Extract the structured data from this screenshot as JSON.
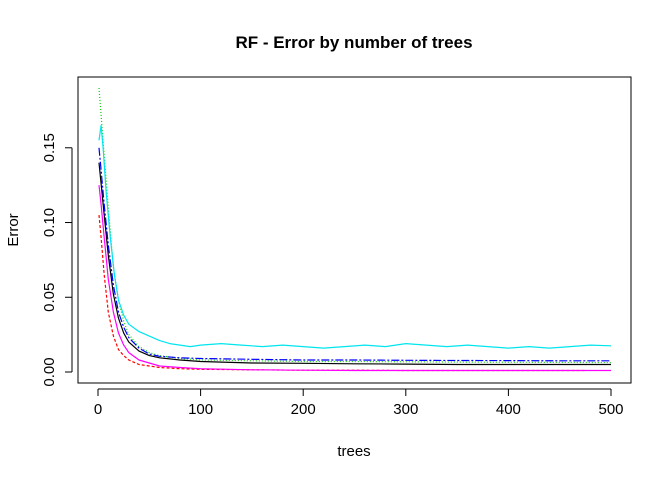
{
  "chart_data": {
    "type": "line",
    "title": "RF - Error by number of trees",
    "xlabel": "trees",
    "ylabel": "Error",
    "xlim": [
      0,
      500
    ],
    "ylim": [
      0,
      0.19
    ],
    "x_ticks": [
      "0",
      "100",
      "200",
      "300",
      "400",
      "500"
    ],
    "y_ticks": [
      "0.00",
      "0.05",
      "0.10",
      "0.15"
    ],
    "grid": false,
    "legend": "none",
    "series": [
      {
        "color": "#000000",
        "dash": "solid",
        "points": [
          [
            1,
            0.14
          ],
          [
            3,
            0.126
          ],
          [
            6,
            0.105
          ],
          [
            10,
            0.078
          ],
          [
            15,
            0.052
          ],
          [
            20,
            0.036
          ],
          [
            25,
            0.026
          ],
          [
            30,
            0.02
          ],
          [
            40,
            0.014
          ],
          [
            50,
            0.011
          ],
          [
            60,
            0.0095
          ],
          [
            80,
            0.008
          ],
          [
            100,
            0.007
          ],
          [
            150,
            0.006
          ],
          [
            200,
            0.0058
          ],
          [
            250,
            0.0055
          ],
          [
            300,
            0.0053
          ],
          [
            350,
            0.005
          ],
          [
            400,
            0.005
          ],
          [
            450,
            0.005
          ],
          [
            500,
            0.005
          ]
        ]
      },
      {
        "color": "#ff0000",
        "dash": "3,2",
        "points": [
          [
            1,
            0.105
          ],
          [
            3,
            0.09
          ],
          [
            6,
            0.065
          ],
          [
            10,
            0.04
          ],
          [
            15,
            0.024
          ],
          [
            20,
            0.015
          ],
          [
            25,
            0.011
          ],
          [
            30,
            0.008
          ],
          [
            40,
            0.005
          ],
          [
            50,
            0.004
          ],
          [
            60,
            0.003
          ],
          [
            80,
            0.0022
          ],
          [
            100,
            0.0018
          ],
          [
            150,
            0.0015
          ],
          [
            200,
            0.0012
          ],
          [
            250,
            0.0012
          ],
          [
            300,
            0.001
          ],
          [
            350,
            0.001
          ],
          [
            400,
            0.001
          ],
          [
            450,
            0.001
          ],
          [
            475,
            0.001
          ]
        ]
      },
      {
        "color": "#00cd00",
        "dash": "1,2",
        "points": [
          [
            1,
            0.19
          ],
          [
            3,
            0.172
          ],
          [
            6,
            0.145
          ],
          [
            10,
            0.11
          ],
          [
            15,
            0.07
          ],
          [
            20,
            0.048
          ],
          [
            25,
            0.034
          ],
          [
            30,
            0.025
          ],
          [
            40,
            0.017
          ],
          [
            50,
            0.013
          ],
          [
            60,
            0.011
          ],
          [
            80,
            0.009
          ],
          [
            100,
            0.008
          ],
          [
            150,
            0.0075
          ],
          [
            200,
            0.007
          ],
          [
            250,
            0.007
          ],
          [
            300,
            0.0068
          ],
          [
            350,
            0.0066
          ],
          [
            400,
            0.0065
          ],
          [
            450,
            0.0064
          ],
          [
            500,
            0.0063
          ]
        ]
      },
      {
        "color": "#0000ff",
        "dash": "8,2,2,2",
        "points": [
          [
            1,
            0.15
          ],
          [
            3,
            0.135
          ],
          [
            6,
            0.112
          ],
          [
            10,
            0.085
          ],
          [
            15,
            0.058
          ],
          [
            20,
            0.04
          ],
          [
            25,
            0.03
          ],
          [
            30,
            0.023
          ],
          [
            40,
            0.016
          ],
          [
            50,
            0.012
          ],
          [
            60,
            0.0105
          ],
          [
            80,
            0.0095
          ],
          [
            100,
            0.009
          ],
          [
            150,
            0.0085
          ],
          [
            200,
            0.008
          ],
          [
            250,
            0.008
          ],
          [
            300,
            0.0078
          ],
          [
            350,
            0.0077
          ],
          [
            400,
            0.0076
          ],
          [
            450,
            0.0075
          ],
          [
            500,
            0.0075
          ]
        ]
      },
      {
        "color": "#00e5ee",
        "dash": "solid",
        "points": [
          [
            1,
            0.155
          ],
          [
            3,
            0.165
          ],
          [
            5,
            0.15
          ],
          [
            8,
            0.12
          ],
          [
            12,
            0.09
          ],
          [
            16,
            0.065
          ],
          [
            20,
            0.048
          ],
          [
            25,
            0.038
          ],
          [
            30,
            0.032
          ],
          [
            40,
            0.027
          ],
          [
            50,
            0.024
          ],
          [
            60,
            0.021
          ],
          [
            70,
            0.019
          ],
          [
            80,
            0.018
          ],
          [
            90,
            0.017
          ],
          [
            100,
            0.018
          ],
          [
            120,
            0.019
          ],
          [
            140,
            0.018
          ],
          [
            160,
            0.017
          ],
          [
            180,
            0.018
          ],
          [
            200,
            0.017
          ],
          [
            220,
            0.016
          ],
          [
            240,
            0.017
          ],
          [
            260,
            0.018
          ],
          [
            280,
            0.017
          ],
          [
            300,
            0.019
          ],
          [
            320,
            0.018
          ],
          [
            340,
            0.017
          ],
          [
            360,
            0.018
          ],
          [
            380,
            0.017
          ],
          [
            400,
            0.016
          ],
          [
            420,
            0.017
          ],
          [
            440,
            0.016
          ],
          [
            460,
            0.017
          ],
          [
            480,
            0.018
          ],
          [
            500,
            0.0175
          ]
        ]
      },
      {
        "color": "#ff00ff",
        "dash": "solid",
        "points": [
          [
            1,
            0.125
          ],
          [
            3,
            0.112
          ],
          [
            6,
            0.09
          ],
          [
            10,
            0.062
          ],
          [
            15,
            0.04
          ],
          [
            20,
            0.026
          ],
          [
            25,
            0.018
          ],
          [
            30,
            0.013
          ],
          [
            40,
            0.008
          ],
          [
            50,
            0.006
          ],
          [
            60,
            0.004
          ],
          [
            80,
            0.003
          ],
          [
            100,
            0.0022
          ],
          [
            150,
            0.0015
          ],
          [
            200,
            0.0012
          ],
          [
            250,
            0.001
          ],
          [
            300,
            0.001
          ],
          [
            350,
            0.001
          ],
          [
            400,
            0.001
          ],
          [
            450,
            0.001
          ],
          [
            500,
            0.001
          ]
        ]
      }
    ]
  }
}
